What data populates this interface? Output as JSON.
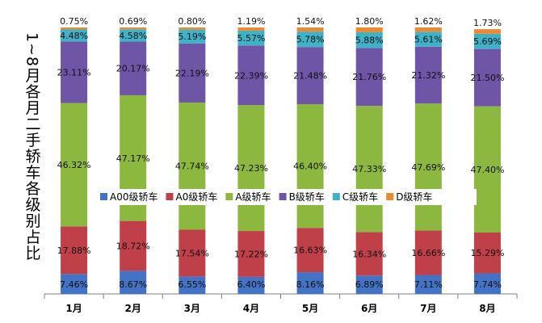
{
  "chart_data": {
    "type": "bar",
    "stacked": true,
    "percent": true,
    "title": "",
    "xlabel": "",
    "ylabel": "1~8月各月二手轿车各级别占比",
    "ylim": [
      0,
      100
    ],
    "grid": false,
    "legend_position": "middle-right",
    "categories": [
      "1月",
      "2月",
      "3月",
      "4月",
      "5月",
      "6月",
      "7月",
      "8月"
    ],
    "series": [
      {
        "name": "A00级轿车",
        "color": "#4472c4",
        "values": [
          7.46,
          8.67,
          6.55,
          6.4,
          8.16,
          6.89,
          7.11,
          7.74
        ],
        "labels": [
          "7.46%",
          "8.67%",
          "6.55%",
          "6.40%",
          "8.16%",
          "6.89%",
          "7.11%",
          "7.74%"
        ]
      },
      {
        "name": "A0级轿车",
        "color": "#c0404a",
        "values": [
          17.88,
          18.72,
          17.54,
          17.22,
          16.63,
          16.34,
          16.66,
          15.29
        ],
        "labels": [
          "17.88%",
          "18.72%",
          "17.54%",
          "17.22%",
          "16.63%",
          "16.34%",
          "16.66%",
          "15.29%"
        ]
      },
      {
        "name": "A级轿车",
        "color": "#8db83f",
        "values": [
          46.32,
          47.17,
          47.74,
          47.23,
          46.4,
          47.33,
          47.69,
          47.4
        ],
        "labels": [
          "46.32%",
          "47.17%",
          "47.74%",
          "47.23%",
          "46.40%",
          "47.33%",
          "47.69%",
          "47.40%"
        ]
      },
      {
        "name": "B级轿车",
        "color": "#6f55a6",
        "values": [
          23.11,
          20.17,
          22.19,
          22.39,
          21.48,
          21.76,
          21.32,
          21.5
        ],
        "labels": [
          "23.11%",
          "20.17%",
          "22.19%",
          "22.39%",
          "21.48%",
          "21.76%",
          "21.32%",
          "21.50%"
        ]
      },
      {
        "name": "C级轿车",
        "color": "#3fb2c8",
        "values": [
          4.48,
          4.58,
          5.19,
          5.57,
          5.78,
          5.88,
          5.61,
          5.69
        ],
        "labels": [
          "4.48%",
          "4.58%",
          "5.19%",
          "5.57%",
          "5.78%",
          "5.88%",
          "5.61%",
          "5.69%"
        ]
      },
      {
        "name": "D级轿车",
        "color": "#ea8a32",
        "values": [
          0.75,
          0.69,
          0.8,
          1.19,
          1.54,
          1.8,
          1.62,
          1.73
        ],
        "labels": [
          "0.75%",
          "0.69%",
          "0.80%",
          "1.19%",
          "1.54%",
          "1.80%",
          "1.62%",
          "1.73%"
        ]
      }
    ]
  }
}
